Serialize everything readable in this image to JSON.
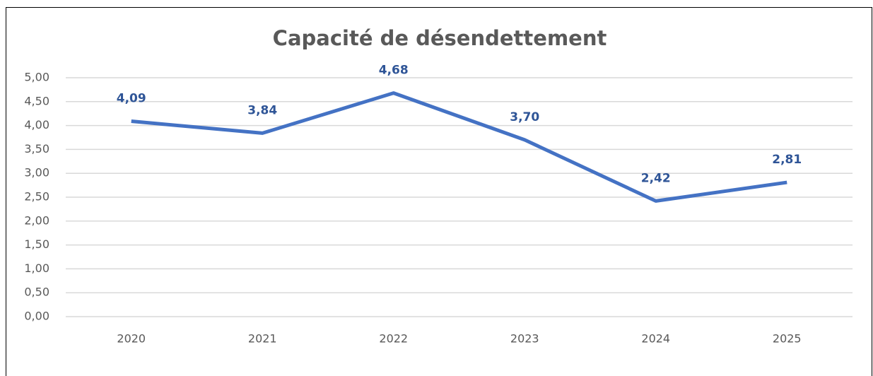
{
  "chart_data": {
    "type": "line",
    "title": "Capacité de désendettement",
    "categories": [
      "2020",
      "2021",
      "2022",
      "2023",
      "2024",
      "2025"
    ],
    "series": [
      {
        "name": "Capacité de désendettement",
        "color": "#4472c4",
        "values": [
          4.09,
          3.84,
          4.68,
          3.7,
          2.42,
          2.81
        ],
        "value_labels": [
          "4,09",
          "3,84",
          "4,68",
          "3,70",
          "2,42",
          "2,81"
        ]
      }
    ],
    "ylim": [
      0,
      5
    ],
    "yticks": [
      {
        "value": 0,
        "label": "0,00"
      },
      {
        "value": 0.5,
        "label": "0,50"
      },
      {
        "value": 1,
        "label": "1,00"
      },
      {
        "value": 1.5,
        "label": "1,50"
      },
      {
        "value": 2,
        "label": "2,00"
      },
      {
        "value": 2.5,
        "label": "2,50"
      },
      {
        "value": 3,
        "label": "3,00"
      },
      {
        "value": 3.5,
        "label": "3,50"
      },
      {
        "value": 4,
        "label": "4,00"
      },
      {
        "value": 4.5,
        "label": "4,50"
      },
      {
        "value": 5,
        "label": "5,00"
      }
    ],
    "grid": true
  }
}
